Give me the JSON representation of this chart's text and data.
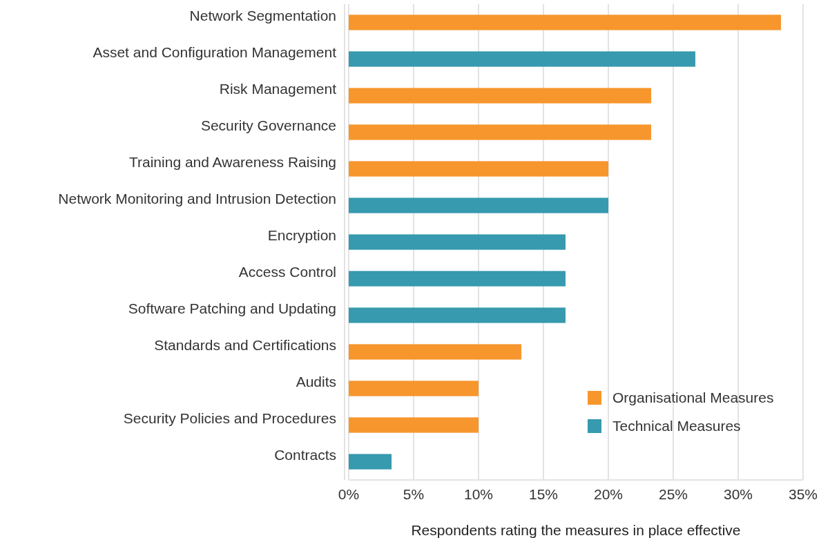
{
  "chart_data": {
    "type": "bar",
    "orientation": "horizontal",
    "xlabel": "Respondents rating the measures in place effective",
    "categories": [
      "Network Segmentation",
      "Asset and Configuration Management",
      "Risk Management",
      "Security Governance",
      "Training and Awareness Raising",
      "Network Monitoring and Intrusion Detection",
      "Encryption",
      "Access Control",
      "Software Patching and Updating",
      "Standards and Certifications",
      "Audits",
      "Security Policies and Procedures",
      "Contracts"
    ],
    "series": [
      {
        "name": "Organisational Measures",
        "color": "#f7962d",
        "values": [
          33.3,
          null,
          23.3,
          23.3,
          20,
          null,
          null,
          null,
          null,
          13.3,
          10,
          10,
          null
        ]
      },
      {
        "name": "Technical Measures",
        "color": "#379aaf",
        "values": [
          null,
          26.7,
          null,
          null,
          null,
          20,
          16.7,
          16.7,
          16.7,
          null,
          null,
          null,
          3.3
        ]
      }
    ],
    "xlim": [
      0,
      35
    ],
    "xticks": [
      {
        "value": 0,
        "label": "0%"
      },
      {
        "value": 5,
        "label": "5%"
      },
      {
        "value": 10,
        "label": "10%"
      },
      {
        "value": 15,
        "label": "15%"
      },
      {
        "value": 20,
        "label": "20%"
      },
      {
        "value": 25,
        "label": "25%"
      },
      {
        "value": 30,
        "label": "30%"
      },
      {
        "value": 35,
        "label": "35%"
      }
    ],
    "grid": "x",
    "legend": "bottom right"
  }
}
